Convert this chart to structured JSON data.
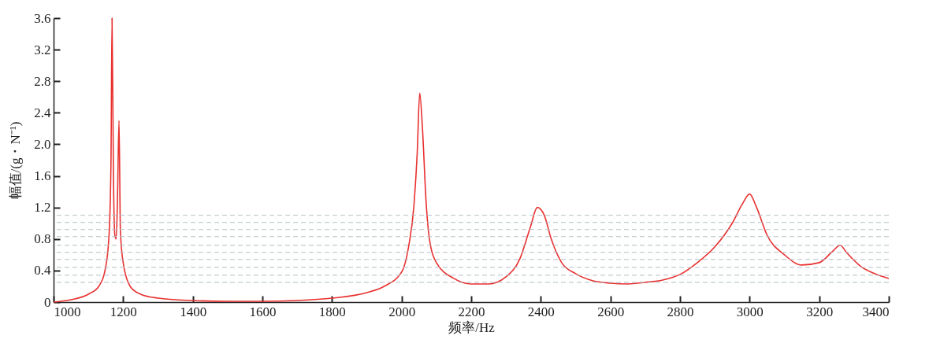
{
  "chart_data": {
    "type": "line",
    "xlabel": "频率/Hz",
    "ylabel": "幅值/(g・N⁻¹)",
    "xlim": [
      1000,
      3400
    ],
    "xticks": [
      1000,
      1200,
      1400,
      1600,
      1800,
      2000,
      2200,
      2400,
      2600,
      2800,
      3000,
      3200,
      3400
    ],
    "ylim": [
      0,
      3.6
    ],
    "yticks": [
      0,
      0.4,
      0.8,
      1.2,
      1.6,
      {
        "value": 2,
        "label": "2.0"
      },
      2.4,
      2.8,
      3.2,
      3.6
    ],
    "grid": false,
    "marker": "none",
    "line_style": "solid",
    "x": [
      1000,
      1050,
      1100,
      1130,
      1150,
      1160,
      1165,
      1168,
      1172,
      1176,
      1180,
      1184,
      1188,
      1192,
      1200,
      1220,
      1250,
      1300,
      1400,
      1500,
      1600,
      1700,
      1800,
      1900,
      1950,
      2000,
      2020,
      2035,
      2045,
      2052,
      2060,
      2070,
      2080,
      2100,
      2150,
      2200,
      2250,
      2300,
      2340,
      2370,
      2390,
      2410,
      2430,
      2460,
      2500,
      2550,
      2600,
      2650,
      2700,
      2750,
      2800,
      2850,
      2900,
      2950,
      2980,
      3000,
      3020,
      3050,
      3100,
      3150,
      3200,
      3240,
      3260,
      3280,
      3320,
      3360,
      3400
    ],
    "series": [
      {
        "color": "#e8302f",
        "values": [
          0,
          0.03,
          0.1,
          0.2,
          0.45,
          0.9,
          1.8,
          3.6,
          1.6,
          0.85,
          0.8,
          1.4,
          2.3,
          0.9,
          0.5,
          0.2,
          0.1,
          0.05,
          0.02,
          0.01,
          0.01,
          0.02,
          0.05,
          0.12,
          0.2,
          0.38,
          0.7,
          1.2,
          1.9,
          2.65,
          2.2,
          1.3,
          0.8,
          0.5,
          0.3,
          0.23,
          0.23,
          0.32,
          0.55,
          0.95,
          1.2,
          1.1,
          0.8,
          0.5,
          0.36,
          0.27,
          0.24,
          0.23,
          0.25,
          0.28,
          0.35,
          0.5,
          0.7,
          1.0,
          1.25,
          1.37,
          1.2,
          0.85,
          0.6,
          0.47,
          0.5,
          0.65,
          0.72,
          0.62,
          0.45,
          0.36,
          0.3
        ]
      }
    ],
    "ref_lines": [
      {
        "axis": "y",
        "value": 1.1,
        "color": "#b0bec5",
        "line_style": "dashed"
      },
      {
        "axis": "y",
        "value": 1.01,
        "color": "#b0bec5",
        "line_style": "dashed"
      },
      {
        "axis": "y",
        "value": 0.92,
        "color": "#b0bec5",
        "line_style": "dashed"
      },
      {
        "axis": "y",
        "value": 0.83,
        "color": "#b0bec5",
        "line_style": "dashed"
      },
      {
        "axis": "y",
        "value": 0.72,
        "color": "#b0bec5",
        "line_style": "dashed"
      },
      {
        "axis": "y",
        "value": 0.63,
        "color": "#b0bec5",
        "line_style": "dashed"
      },
      {
        "axis": "y",
        "value": 0.54,
        "color": "#b0bec5",
        "line_style": "dashed"
      },
      {
        "axis": "y",
        "value": 0.44,
        "color": "#b0bec5",
        "line_style": "dashed"
      },
      {
        "axis": "y",
        "value": 0.34,
        "color": "#b0bec5",
        "line_style": "dashed"
      },
      {
        "axis": "y",
        "value": 0.25,
        "color": "#b0bec5",
        "line_style": "dashed"
      }
    ]
  }
}
